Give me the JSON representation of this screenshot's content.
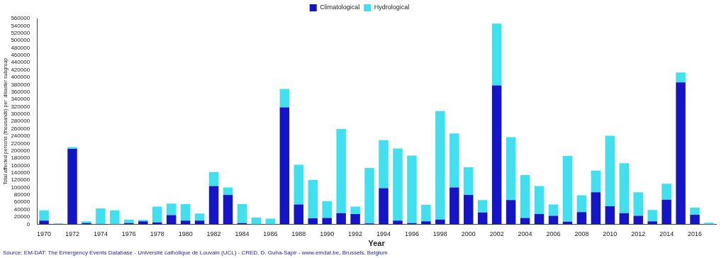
{
  "chart_data": {
    "type": "bar",
    "x_label": "Year",
    "y_label": "Total affected persons (thousands) per  disaster subgroup",
    "annotations": [
      "Source: EM-DAT: The Emergency Events Database - Université catholique de Louvain (UCL) - CRED, D. Guha-Sapir - www.emdat.be, Brussels, Belgium"
    ],
    "categories": [
      "1970",
      null,
      "1972",
      null,
      "1974",
      null,
      "1976",
      null,
      "1978",
      null,
      "1980",
      null,
      "1982",
      null,
      "1984",
      null,
      "1986",
      null,
      "1988",
      null,
      "1990",
      null,
      "1992",
      null,
      "1994",
      null,
      "1996",
      null,
      "1998",
      null,
      "2000",
      null,
      "2002",
      null,
      "2004",
      null,
      "2006",
      null,
      "2008",
      null,
      "2010",
      null,
      "2012",
      null,
      "2014",
      null,
      "2016",
      null
    ],
    "series": [
      {
        "name": "Climatological",
        "color": "#1414c8",
        "values": [
          10000,
          1000,
          205000,
          3000,
          1000,
          0,
          3000,
          8000,
          5000,
          25000,
          10000,
          10000,
          104000,
          80000,
          3000,
          0,
          0,
          318000,
          54000,
          16000,
          17000,
          30000,
          28000,
          2000,
          98000,
          10000,
          3000,
          8000,
          13000,
          100000,
          80000,
          32000,
          378000,
          66000,
          17000,
          28000,
          23000,
          7000,
          33000,
          87000,
          49000,
          30000,
          23000,
          8000,
          67000,
          386000,
          26000,
          0
        ]
      },
      {
        "name": "Hydrological",
        "color": "#3fe0f0",
        "values": [
          28000,
          1000,
          5000,
          5000,
          42000,
          38000,
          10000,
          4000,
          43000,
          31000,
          45000,
          19000,
          38000,
          20000,
          52000,
          18000,
          15000,
          50000,
          108000,
          105000,
          46000,
          229000,
          20000,
          151000,
          131000,
          196000,
          184000,
          45000,
          295000,
          147000,
          75000,
          34000,
          168000,
          171000,
          117000,
          76000,
          31000,
          179000,
          46000,
          59000,
          192000,
          136000,
          64000,
          31000,
          43000,
          27000,
          19000,
          4000
        ]
      }
    ],
    "ylim": [
      0,
      560000
    ],
    "yticks": [
      0,
      20000,
      40000,
      60000,
      80000,
      100000,
      120000,
      140000,
      160000,
      180000,
      200000,
      220000,
      240000,
      260000,
      280000,
      300000,
      320000,
      340000,
      360000,
      380000,
      400000,
      420000,
      440000,
      460000,
      480000,
      500000,
      520000,
      540000,
      560000
    ],
    "stacked": true,
    "grid": false,
    "legend": "top"
  }
}
